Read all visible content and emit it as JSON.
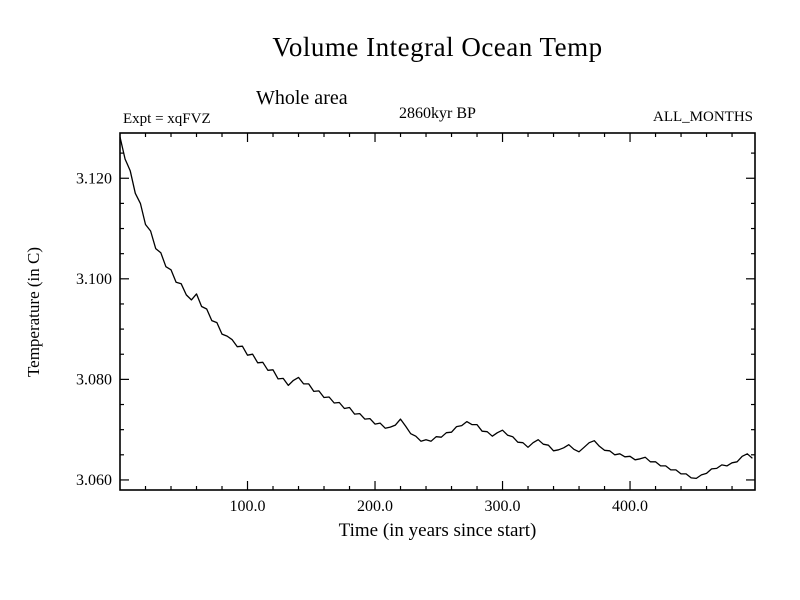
{
  "header": {
    "title": "Volume Integral Ocean Temp",
    "subtitle": "Whole area",
    "experiment": "Expt = xqFVZ",
    "date": "2860kyr BP",
    "months": "ALL_MONTHS"
  },
  "chart_data": {
    "type": "line",
    "title": "Volume Integral Ocean Temp",
    "subtitle": "Whole area",
    "annotations": [
      "Expt = xqFVZ",
      "2860kyr BP",
      "ALL_MONTHS"
    ],
    "xlabel": "Time (in years since start)",
    "ylabel": "Temperature (in C)",
    "xlim": [
      0,
      498
    ],
    "ylim": [
      3.058,
      3.129
    ],
    "x_ticks": [
      100,
      200,
      300,
      400
    ],
    "x_tick_labels": [
      "100.0",
      "200.0",
      "300.0",
      "400.0"
    ],
    "x_minor_step": 20,
    "y_ticks": [
      3.06,
      3.08,
      3.1,
      3.12
    ],
    "y_tick_labels": [
      "3.060",
      "3.080",
      "3.100",
      "3.120"
    ],
    "y_minor_step": 0.005,
    "grid": false,
    "legend": "none",
    "line_color": "#000000",
    "points": [
      [
        0,
        3.1282
      ],
      [
        4,
        3.1238
      ],
      [
        8,
        3.1215
      ],
      [
        12,
        3.117
      ],
      [
        16,
        3.115
      ],
      [
        20,
        3.1108
      ],
      [
        24,
        3.1095
      ],
      [
        28,
        3.106
      ],
      [
        32,
        3.1052
      ],
      [
        36,
        3.1024
      ],
      [
        40,
        3.1018
      ],
      [
        44,
        3.0993
      ],
      [
        48,
        3.099
      ],
      [
        52,
        3.0968
      ],
      [
        56,
        3.0958
      ],
      [
        60,
        3.097
      ],
      [
        64,
        3.0945
      ],
      [
        68,
        3.094
      ],
      [
        72,
        3.0917
      ],
      [
        76,
        3.0913
      ],
      [
        80,
        3.089
      ],
      [
        84,
        3.0886
      ],
      [
        88,
        3.0879
      ],
      [
        92,
        3.0865
      ],
      [
        96,
        3.0866
      ],
      [
        100,
        3.0848
      ],
      [
        104,
        3.085
      ],
      [
        108,
        3.0833
      ],
      [
        112,
        3.0834
      ],
      [
        116,
        3.0818
      ],
      [
        120,
        3.0819
      ],
      [
        124,
        3.0801
      ],
      [
        128,
        3.0802
      ],
      [
        132,
        3.0788
      ],
      [
        136,
        3.0798
      ],
      [
        140,
        3.0804
      ],
      [
        144,
        3.0791
      ],
      [
        148,
        3.0791
      ],
      [
        152,
        3.0776
      ],
      [
        156,
        3.0777
      ],
      [
        160,
        3.0764
      ],
      [
        164,
        3.0765
      ],
      [
        168,
        3.0753
      ],
      [
        172,
        3.0754
      ],
      [
        176,
        3.0742
      ],
      [
        180,
        3.0744
      ],
      [
        184,
        3.0731
      ],
      [
        188,
        3.0732
      ],
      [
        192,
        3.0721
      ],
      [
        196,
        3.0722
      ],
      [
        200,
        3.0711
      ],
      [
        204,
        3.0713
      ],
      [
        208,
        3.0703
      ],
      [
        212,
        3.0705
      ],
      [
        216,
        3.0709
      ],
      [
        220,
        3.0721
      ],
      [
        224,
        3.0707
      ],
      [
        228,
        3.0692
      ],
      [
        232,
        3.0687
      ],
      [
        236,
        3.0677
      ],
      [
        240,
        3.068
      ],
      [
        244,
        3.0677
      ],
      [
        248,
        3.0686
      ],
      [
        252,
        3.0685
      ],
      [
        256,
        3.0694
      ],
      [
        260,
        3.0695
      ],
      [
        264,
        3.0706
      ],
      [
        268,
        3.0708
      ],
      [
        272,
        3.0716
      ],
      [
        276,
        3.071
      ],
      [
        280,
        3.071
      ],
      [
        284,
        3.0697
      ],
      [
        288,
        3.0696
      ],
      [
        292,
        3.0687
      ],
      [
        296,
        3.0694
      ],
      [
        300,
        3.0699
      ],
      [
        304,
        3.0689
      ],
      [
        308,
        3.0686
      ],
      [
        312,
        3.0675
      ],
      [
        316,
        3.0674
      ],
      [
        320,
        3.0665
      ],
      [
        324,
        3.0674
      ],
      [
        328,
        3.068
      ],
      [
        332,
        3.0671
      ],
      [
        336,
        3.0669
      ],
      [
        340,
        3.0658
      ],
      [
        344,
        3.066
      ],
      [
        348,
        3.0664
      ],
      [
        352,
        3.067
      ],
      [
        356,
        3.0661
      ],
      [
        360,
        3.0656
      ],
      [
        364,
        3.0665
      ],
      [
        368,
        3.0674
      ],
      [
        372,
        3.0678
      ],
      [
        376,
        3.0667
      ],
      [
        380,
        3.0659
      ],
      [
        384,
        3.0658
      ],
      [
        388,
        3.065
      ],
      [
        392,
        3.0652
      ],
      [
        396,
        3.0646
      ],
      [
        400,
        3.0647
      ],
      [
        404,
        3.064
      ],
      [
        408,
        3.0642
      ],
      [
        412,
        3.0645
      ],
      [
        416,
        3.0636
      ],
      [
        420,
        3.0636
      ],
      [
        424,
        3.0628
      ],
      [
        428,
        3.0628
      ],
      [
        432,
        3.062
      ],
      [
        436,
        3.062
      ],
      [
        440,
        3.0612
      ],
      [
        444,
        3.0612
      ],
      [
        448,
        3.0604
      ],
      [
        452,
        3.0603
      ],
      [
        456,
        3.061
      ],
      [
        460,
        3.0613
      ],
      [
        464,
        3.0622
      ],
      [
        468,
        3.0623
      ],
      [
        472,
        3.063
      ],
      [
        476,
        3.0628
      ],
      [
        480,
        3.0634
      ],
      [
        484,
        3.0636
      ],
      [
        488,
        3.0647
      ],
      [
        492,
        3.0652
      ],
      [
        496,
        3.0643
      ]
    ]
  }
}
